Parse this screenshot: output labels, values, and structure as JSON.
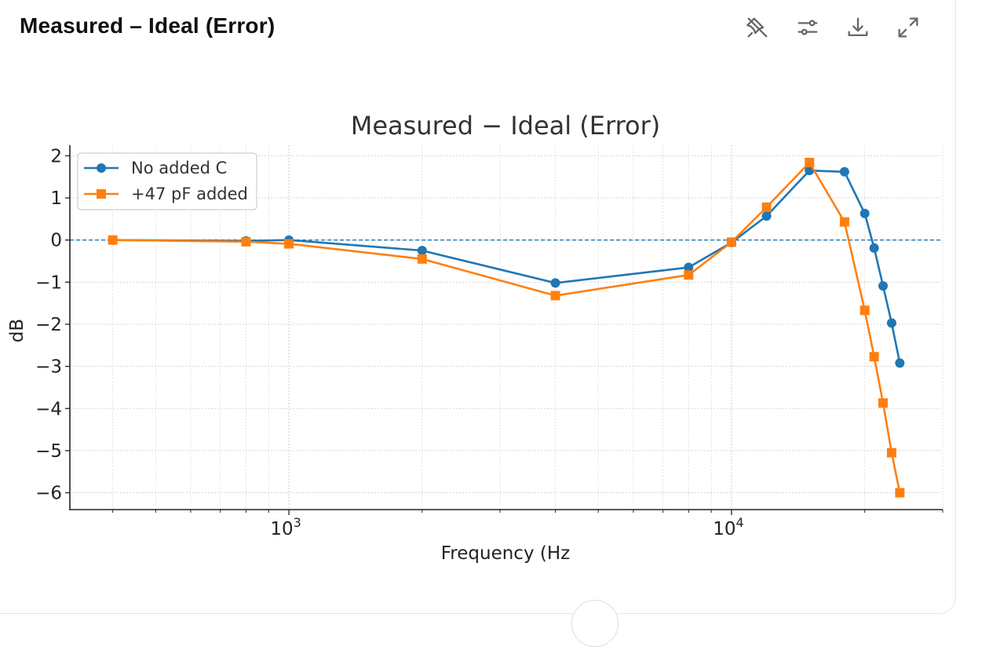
{
  "header": {
    "title": "Measured – Ideal (Error)"
  },
  "toolbar": {
    "icons": [
      "pin-off-icon",
      "sliders-icon",
      "download-icon",
      "expand-icon"
    ]
  },
  "colors": {
    "series1": "#1f77b4",
    "series2": "#ff7f0e",
    "zero_line": "#1f77b4"
  },
  "chart_data": {
    "type": "line",
    "title": "Measured − Ideal (Error)",
    "xlabel": "Frequency (Hz",
    "ylabel": "dB",
    "xscale": "log",
    "xlim": [
      320,
      30000
    ],
    "ylim": [
      -6.4,
      2.25
    ],
    "yticks": [
      2,
      1,
      0,
      -1,
      -2,
      -3,
      -4,
      -5,
      -6
    ],
    "ytick_labels": [
      "2",
      "1",
      "0",
      "−1",
      "−2",
      "−3",
      "−4",
      "−5",
      "−6"
    ],
    "xticks": [
      1000,
      10000
    ],
    "xtick_bases": [
      "10",
      "10"
    ],
    "xtick_exps": [
      "3",
      "4"
    ],
    "grid": true,
    "reference_line": 0,
    "legend": "top-left",
    "series": [
      {
        "name": "No added C",
        "marker": "circle",
        "x": [
          400,
          800,
          1000,
          2000,
          4000,
          8000,
          10000,
          12000,
          15000,
          18000,
          20000,
          21000,
          22000,
          23000,
          24000
        ],
        "y": [
          0.0,
          -0.02,
          0.0,
          -0.25,
          -1.02,
          -0.65,
          -0.06,
          0.57,
          1.65,
          1.62,
          0.63,
          -0.19,
          -1.09,
          -1.97,
          -2.92
        ]
      },
      {
        "name": "+47 pF added",
        "marker": "square",
        "x": [
          400,
          800,
          1000,
          2000,
          4000,
          8000,
          10000,
          12000,
          15000,
          18000,
          20000,
          21000,
          22000,
          23000,
          24000
        ],
        "y": [
          0.0,
          -0.04,
          -0.09,
          -0.45,
          -1.32,
          -0.83,
          -0.05,
          0.78,
          1.84,
          0.43,
          -1.67,
          -2.77,
          -3.87,
          -5.05,
          -6.0
        ]
      }
    ]
  }
}
